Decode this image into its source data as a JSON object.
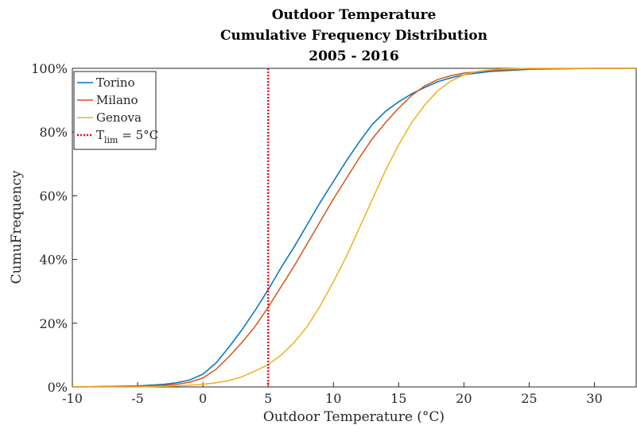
{
  "chart_data": {
    "type": "line",
    "title": [
      "Outdoor Temperature",
      "Cumulative Frequency Distribution",
      "2005 - 2016"
    ],
    "x_label": "Outdoor Temperature (°C)",
    "y_label": "CumuFrequency",
    "xlim": [
      -10,
      33.2
    ],
    "ylim": [
      0,
      100
    ],
    "xticks": [
      -10,
      -5,
      0,
      5,
      10,
      15,
      20,
      25,
      30
    ],
    "yticks": [
      {
        "value": 0,
        "label": "0%"
      },
      {
        "value": 20,
        "label": "20%"
      },
      {
        "value": 40,
        "label": "40%"
      },
      {
        "value": 60,
        "label": "60%"
      },
      {
        "value": 80,
        "label": "80%"
      },
      {
        "value": 100,
        "label": "100%"
      }
    ],
    "legend": "upper left",
    "series": [
      {
        "name": "Torino",
        "color": "#0072bd",
        "x": [
          -10,
          -5,
          -3,
          -2,
          -1,
          0,
          1,
          2,
          3,
          4,
          5,
          6,
          7,
          8,
          9,
          10,
          11,
          12,
          13,
          14,
          15,
          16,
          17,
          18,
          19,
          20,
          22,
          25,
          30,
          33.2
        ],
        "values": [
          0,
          0.3,
          0.8,
          1.3,
          2.2,
          4,
          7.5,
          12.5,
          18,
          24,
          30.5,
          37.5,
          44,
          51,
          58,
          64.5,
          71,
          77,
          82.5,
          86.5,
          89.5,
          92,
          94,
          95.8,
          97,
          98,
          99,
          99.7,
          100,
          100
        ]
      },
      {
        "name": "Milano",
        "color": "#d95319",
        "x": [
          -10,
          -5,
          -3,
          -2,
          -1,
          0,
          1,
          2,
          3,
          4,
          5,
          6,
          7,
          8,
          9,
          10,
          11,
          12,
          13,
          14,
          15,
          16,
          17,
          18,
          19,
          20,
          22,
          25,
          30,
          33.2
        ],
        "values": [
          0,
          0.2,
          0.5,
          0.8,
          1.5,
          2.8,
          5.5,
          9.5,
          14,
          19,
          25,
          31.5,
          38,
          45,
          52,
          59,
          65.5,
          72,
          78,
          83,
          87.5,
          91.5,
          94.5,
          96.5,
          97.7,
          98.5,
          99.3,
          99.8,
          100,
          100
        ]
      },
      {
        "name": "Genova",
        "color": "#edb120",
        "x": [
          -10,
          -5,
          -2,
          0,
          1,
          2,
          3,
          4,
          5,
          6,
          7,
          8,
          9,
          10,
          11,
          12,
          13,
          14,
          15,
          16,
          17,
          18,
          19,
          20,
          21,
          22,
          23,
          25,
          33.2
        ],
        "values": [
          0,
          0,
          0.3,
          0.8,
          1.3,
          2,
          3.2,
          5,
          7,
          10,
          14,
          19,
          25.5,
          33,
          41,
          50,
          59,
          68,
          76,
          83,
          88.5,
          93,
          96,
          98,
          99,
          99.5,
          99.8,
          100,
          100
        ]
      }
    ],
    "vline": {
      "x": 5,
      "label": [
        "T",
        "lim",
        " = 5°C"
      ],
      "color": "#ff0000"
    }
  }
}
